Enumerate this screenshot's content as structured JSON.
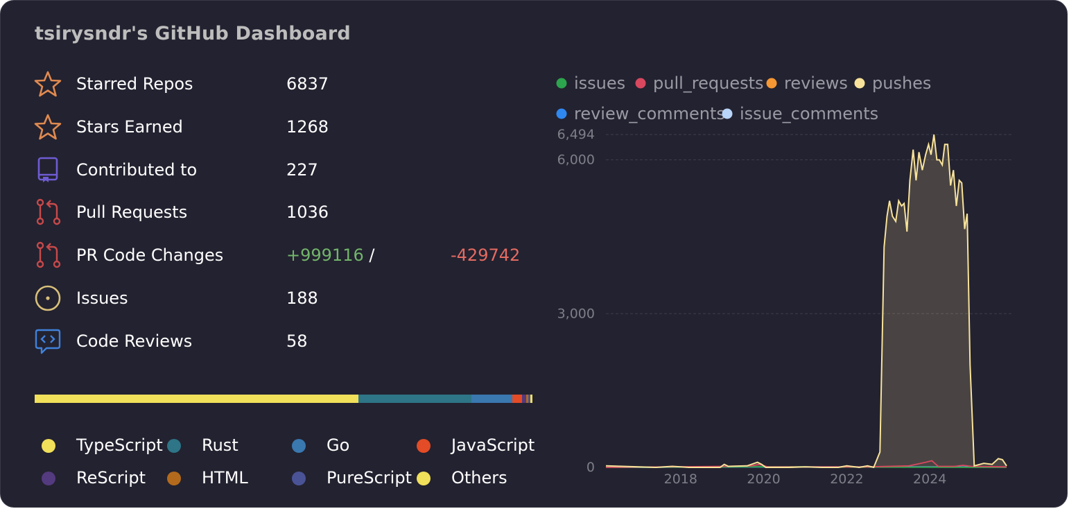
{
  "title": "tsirysndr's GitHub Dashboard",
  "stats": [
    {
      "icon": "star-icon",
      "label": "Starred Repos",
      "value": "6837"
    },
    {
      "icon": "star-icon",
      "label": "Stars Earned",
      "value": "1268"
    },
    {
      "icon": "repo-icon",
      "label": "Contributed to",
      "value": "227"
    },
    {
      "icon": "pull-request-icon",
      "label": "Pull Requests",
      "value": "1036"
    },
    {
      "icon": "pull-request-icon",
      "label": "PR Code Changes",
      "added": "+999116",
      "separator": "/",
      "removed": "-429742"
    },
    {
      "icon": "issue-icon",
      "label": "Issues",
      "value": "188"
    },
    {
      "icon": "code-review-icon",
      "label": "Code Reviews",
      "value": "58"
    }
  ],
  "languages": [
    {
      "name": "TypeScript",
      "percent": 65.1,
      "color": "#f1e05a"
    },
    {
      "name": "Rust",
      "percent": 22.7,
      "color": "#2d7587"
    },
    {
      "name": "Go",
      "percent": 8.2,
      "color": "#3a78b0"
    },
    {
      "name": "JavaScript",
      "percent": 1.9,
      "color": "#e34c26"
    },
    {
      "name": "ReScript",
      "percent": 0.9,
      "color": "#543a7f"
    },
    {
      "name": "HTML",
      "percent": 0.3,
      "color": "#b46a1c"
    },
    {
      "name": "PureScript",
      "percent": 0.5,
      "color": "#4a5396"
    },
    {
      "name": "Others",
      "percent": 0.4,
      "color": "#f1e05a"
    }
  ],
  "chart_data": {
    "type": "area",
    "series": [
      {
        "name": "issues",
        "color": "#2da44e"
      },
      {
        "name": "pull_requests",
        "color": "#d9485f"
      },
      {
        "name": "reviews",
        "color": "#f59833"
      },
      {
        "name": "pushes",
        "color": "#f9e39a"
      },
      {
        "name": "review_comments",
        "color": "#2f88f0"
      },
      {
        "name": "issue_comments",
        "color": "#b8d4f8"
      }
    ],
    "yticks": [
      "0",
      "3,000",
      "6,000",
      "6,494"
    ],
    "ylim": [
      0,
      6494
    ],
    "xticks": [
      "2018",
      "2020",
      "2022",
      "2024"
    ],
    "xlim": [
      2016.2,
      2026.0
    ],
    "grid": true,
    "legend_position": "top",
    "pushes": [
      [
        2016.2,
        30
      ],
      [
        2016.6,
        20
      ],
      [
        2017.0,
        10
      ],
      [
        2017.4,
        0
      ],
      [
        2017.8,
        20
      ],
      [
        2018.2,
        0
      ],
      [
        2018.6,
        0
      ],
      [
        2018.95,
        0
      ],
      [
        2019.05,
        60
      ],
      [
        2019.15,
        20
      ],
      [
        2019.6,
        30
      ],
      [
        2019.85,
        100
      ],
      [
        2019.95,
        60
      ],
      [
        2020.05,
        0
      ],
      [
        2020.6,
        0
      ],
      [
        2021.0,
        10
      ],
      [
        2021.4,
        0
      ],
      [
        2021.8,
        0
      ],
      [
        2022.0,
        30
      ],
      [
        2022.3,
        0
      ],
      [
        2022.5,
        30
      ],
      [
        2022.65,
        0
      ],
      [
        2022.8,
        300
      ],
      [
        2022.9,
        4300
      ],
      [
        2022.97,
        4900
      ],
      [
        2023.03,
        5200
      ],
      [
        2023.1,
        4900
      ],
      [
        2023.18,
        4800
      ],
      [
        2023.25,
        5200
      ],
      [
        2023.32,
        5100
      ],
      [
        2023.38,
        5150
      ],
      [
        2023.45,
        4600
      ],
      [
        2023.52,
        5600
      ],
      [
        2023.6,
        6200
      ],
      [
        2023.67,
        5600
      ],
      [
        2023.74,
        6150
      ],
      [
        2023.82,
        5800
      ],
      [
        2023.9,
        6100
      ],
      [
        2023.97,
        6300
      ],
      [
        2024.03,
        6100
      ],
      [
        2024.1,
        6494
      ],
      [
        2024.17,
        6000
      ],
      [
        2024.23,
        6000
      ],
      [
        2024.3,
        5900
      ],
      [
        2024.36,
        6300
      ],
      [
        2024.43,
        6300
      ],
      [
        2024.5,
        5500
      ],
      [
        2024.57,
        5800
      ],
      [
        2024.64,
        5100
      ],
      [
        2024.71,
        5600
      ],
      [
        2024.77,
        5550
      ],
      [
        2024.84,
        4650
      ],
      [
        2024.9,
        4950
      ],
      [
        2024.97,
        2000
      ],
      [
        2025.07,
        30
      ],
      [
        2025.3,
        80
      ],
      [
        2025.5,
        60
      ],
      [
        2025.65,
        170
      ],
      [
        2025.75,
        150
      ],
      [
        2025.85,
        30
      ]
    ],
    "pull_requests": [
      [
        2016.2,
        0
      ],
      [
        2019.05,
        20
      ],
      [
        2019.7,
        30
      ],
      [
        2019.9,
        60
      ],
      [
        2020.1,
        10
      ],
      [
        2022.5,
        10
      ],
      [
        2023.5,
        30
      ],
      [
        2023.9,
        100
      ],
      [
        2024.05,
        130
      ],
      [
        2024.2,
        20
      ],
      [
        2024.6,
        20
      ],
      [
        2024.8,
        40
      ],
      [
        2025.0,
        20
      ],
      [
        2025.85,
        10
      ]
    ],
    "issues": [
      [
        2016.2,
        0
      ],
      [
        2020.9,
        15
      ],
      [
        2021.3,
        5
      ],
      [
        2025.85,
        0
      ]
    ],
    "review_comments": [
      [
        2016.2,
        0
      ],
      [
        2019.1,
        8
      ],
      [
        2021.2,
        8
      ],
      [
        2023.0,
        5
      ],
      [
        2025.85,
        5
      ]
    ],
    "issue_comments": [
      [
        2016.2,
        0
      ],
      [
        2019.3,
        10
      ],
      [
        2022.0,
        10
      ],
      [
        2025.85,
        8
      ]
    ]
  }
}
